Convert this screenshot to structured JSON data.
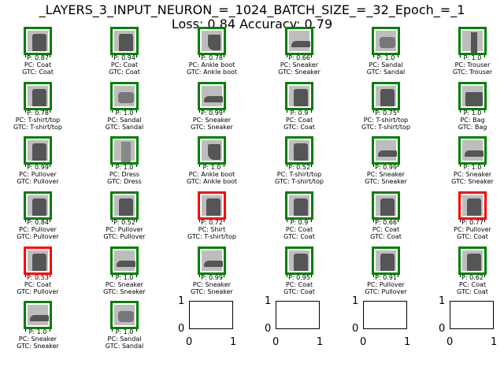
{
  "figure": {
    "title_line1": "_LAYERS_3_INPUT_NEURON_=_1024_BATCH_SIZE_=_32_Epoch_=_1",
    "title_line2": "Loss: 0.84 Accuracy: 0.79"
  },
  "colors": {
    "correct": "#008000",
    "wrong": "#ff0000"
  },
  "tiles": [
    {
      "p": "P: 0.87",
      "pc": "PC: Coat",
      "gtc": "GTC: Coat",
      "correct": true,
      "icon": "coat-icon"
    },
    {
      "p": "P: 0.94",
      "pc": "PC: Coat",
      "gtc": "GTC: Coat",
      "correct": true,
      "icon": "coat-icon"
    },
    {
      "p": "P: 0.78",
      "pc": "PC: Ankle boot",
      "gtc": "GTC: Ankle boot",
      "correct": true,
      "icon": "boot-icon"
    },
    {
      "p": "P: 0.66",
      "pc": "PC: Sneaker",
      "gtc": "GTC: Sneaker",
      "correct": true,
      "icon": "sneaker-icon"
    },
    {
      "p": "P: 1.0",
      "pc": "PC: Sandal",
      "gtc": "GTC: Sandal",
      "correct": true,
      "icon": "sandal-icon"
    },
    {
      "p": "P: 1.0",
      "pc": "PC: Trouser",
      "gtc": "GTC: Trouser",
      "correct": true,
      "icon": "trouser-icon"
    },
    {
      "p": "P: 0.78",
      "pc": "PC: T-shirt/top",
      "gtc": "GTC: T-shirt/top",
      "correct": true,
      "icon": "tshirt-icon"
    },
    {
      "p": "P: 1.0",
      "pc": "PC: Sandal",
      "gtc": "GTC: Sandal",
      "correct": true,
      "icon": "sandal-icon"
    },
    {
      "p": "P: 0.99",
      "pc": "PC: Sneaker",
      "gtc": "GTC: Sneaker",
      "correct": true,
      "icon": "sneaker-icon"
    },
    {
      "p": "P: 0.9",
      "pc": "PC: Coat",
      "gtc": "GTC: Coat",
      "correct": true,
      "icon": "coat-icon"
    },
    {
      "p": "P: 0.75",
      "pc": "PC: T-shirt/top",
      "gtc": "GTC: T-shirt/top",
      "correct": true,
      "icon": "tshirt-icon"
    },
    {
      "p": "P: 1.0",
      "pc": "PC: Bag",
      "gtc": "GTC: Bag",
      "correct": true,
      "icon": "bag-icon"
    },
    {
      "p": "P: 0.99",
      "pc": "PC: Pullover",
      "gtc": "GTC: Pullover",
      "correct": true,
      "icon": "pullover-icon"
    },
    {
      "p": "P: 1.0",
      "pc": "PC: Dress",
      "gtc": "GTC: Dress",
      "correct": true,
      "icon": "dress-icon"
    },
    {
      "p": "P: 1.0",
      "pc": "PC: Ankle boot",
      "gtc": "GTC: Ankle boot",
      "correct": true,
      "icon": "boot-icon"
    },
    {
      "p": "P: 0.52",
      "pc": "PC: T-shirt/top",
      "gtc": "GTC: T-shirt/top",
      "correct": true,
      "icon": "tshirt-icon"
    },
    {
      "p": "P: 0.99",
      "pc": "PC: Sneaker",
      "gtc": "GTC: Sneaker",
      "correct": true,
      "icon": "sneaker-icon"
    },
    {
      "p": "P: 1.0",
      "pc": "PC: Sneaker",
      "gtc": "GTC: Sneaker",
      "correct": true,
      "icon": "sneaker-icon"
    },
    {
      "p": "P: 0.84",
      "pc": "PC: Pullover",
      "gtc": "GTC: Pullover",
      "correct": true,
      "icon": "pullover-icon"
    },
    {
      "p": "P: 0.52",
      "pc": "PC: Pullover",
      "gtc": "GTC: Pullover",
      "correct": true,
      "icon": "pullover-icon"
    },
    {
      "p": "P: 0.72",
      "pc": "PC: Shirt",
      "gtc": "GTC: T-shirt/top",
      "correct": false,
      "icon": "shirt-icon"
    },
    {
      "p": "P: 0.9",
      "pc": "PC: Coat",
      "gtc": "GTC: Coat",
      "correct": true,
      "icon": "coat-icon"
    },
    {
      "p": "P: 0.66",
      "pc": "PC: Coat",
      "gtc": "GTC: Coat",
      "correct": true,
      "icon": "coat-icon"
    },
    {
      "p": "P: 0.77",
      "pc": "PC: Pullover",
      "gtc": "GTC: Coat",
      "correct": false,
      "icon": "coat-icon"
    },
    {
      "p": "P: 0.53",
      "pc": "PC: Coat",
      "gtc": "GTC: Pullover",
      "correct": false,
      "icon": "pullover-icon"
    },
    {
      "p": "P: 1.0",
      "pc": "PC: Sneaker",
      "gtc": "GTC: Sneaker",
      "correct": true,
      "icon": "sneaker-icon"
    },
    {
      "p": "P: 0.99",
      "pc": "PC: Sneaker",
      "gtc": "GTC: Sneaker",
      "correct": true,
      "icon": "sneaker-icon"
    },
    {
      "p": "P: 0.95",
      "pc": "PC: Coat",
      "gtc": "GTC: Coat",
      "correct": true,
      "icon": "coat-icon"
    },
    {
      "p": "P: 0.91",
      "pc": "PC: Pullover",
      "gtc": "GTC: Pullover",
      "correct": true,
      "icon": "pullover-icon"
    },
    {
      "p": "P: 0.62",
      "pc": "PC: Coat",
      "gtc": "GTC: Coat",
      "correct": true,
      "icon": "coat-icon"
    },
    {
      "p": "P: 1.0",
      "pc": "PC: Sneaker",
      "gtc": "GTC: Sneaker",
      "correct": true,
      "icon": "sneaker-icon"
    },
    {
      "p": "P: 1.0",
      "pc": "PC: Sandal",
      "gtc": "GTC: Sandal",
      "correct": true,
      "icon": "sandal-icon"
    }
  ],
  "empty_axes": {
    "count": 4,
    "y_top_label": "1",
    "y_bottom_label": "0",
    "x_left_label": "0",
    "x_right_label": "1"
  }
}
